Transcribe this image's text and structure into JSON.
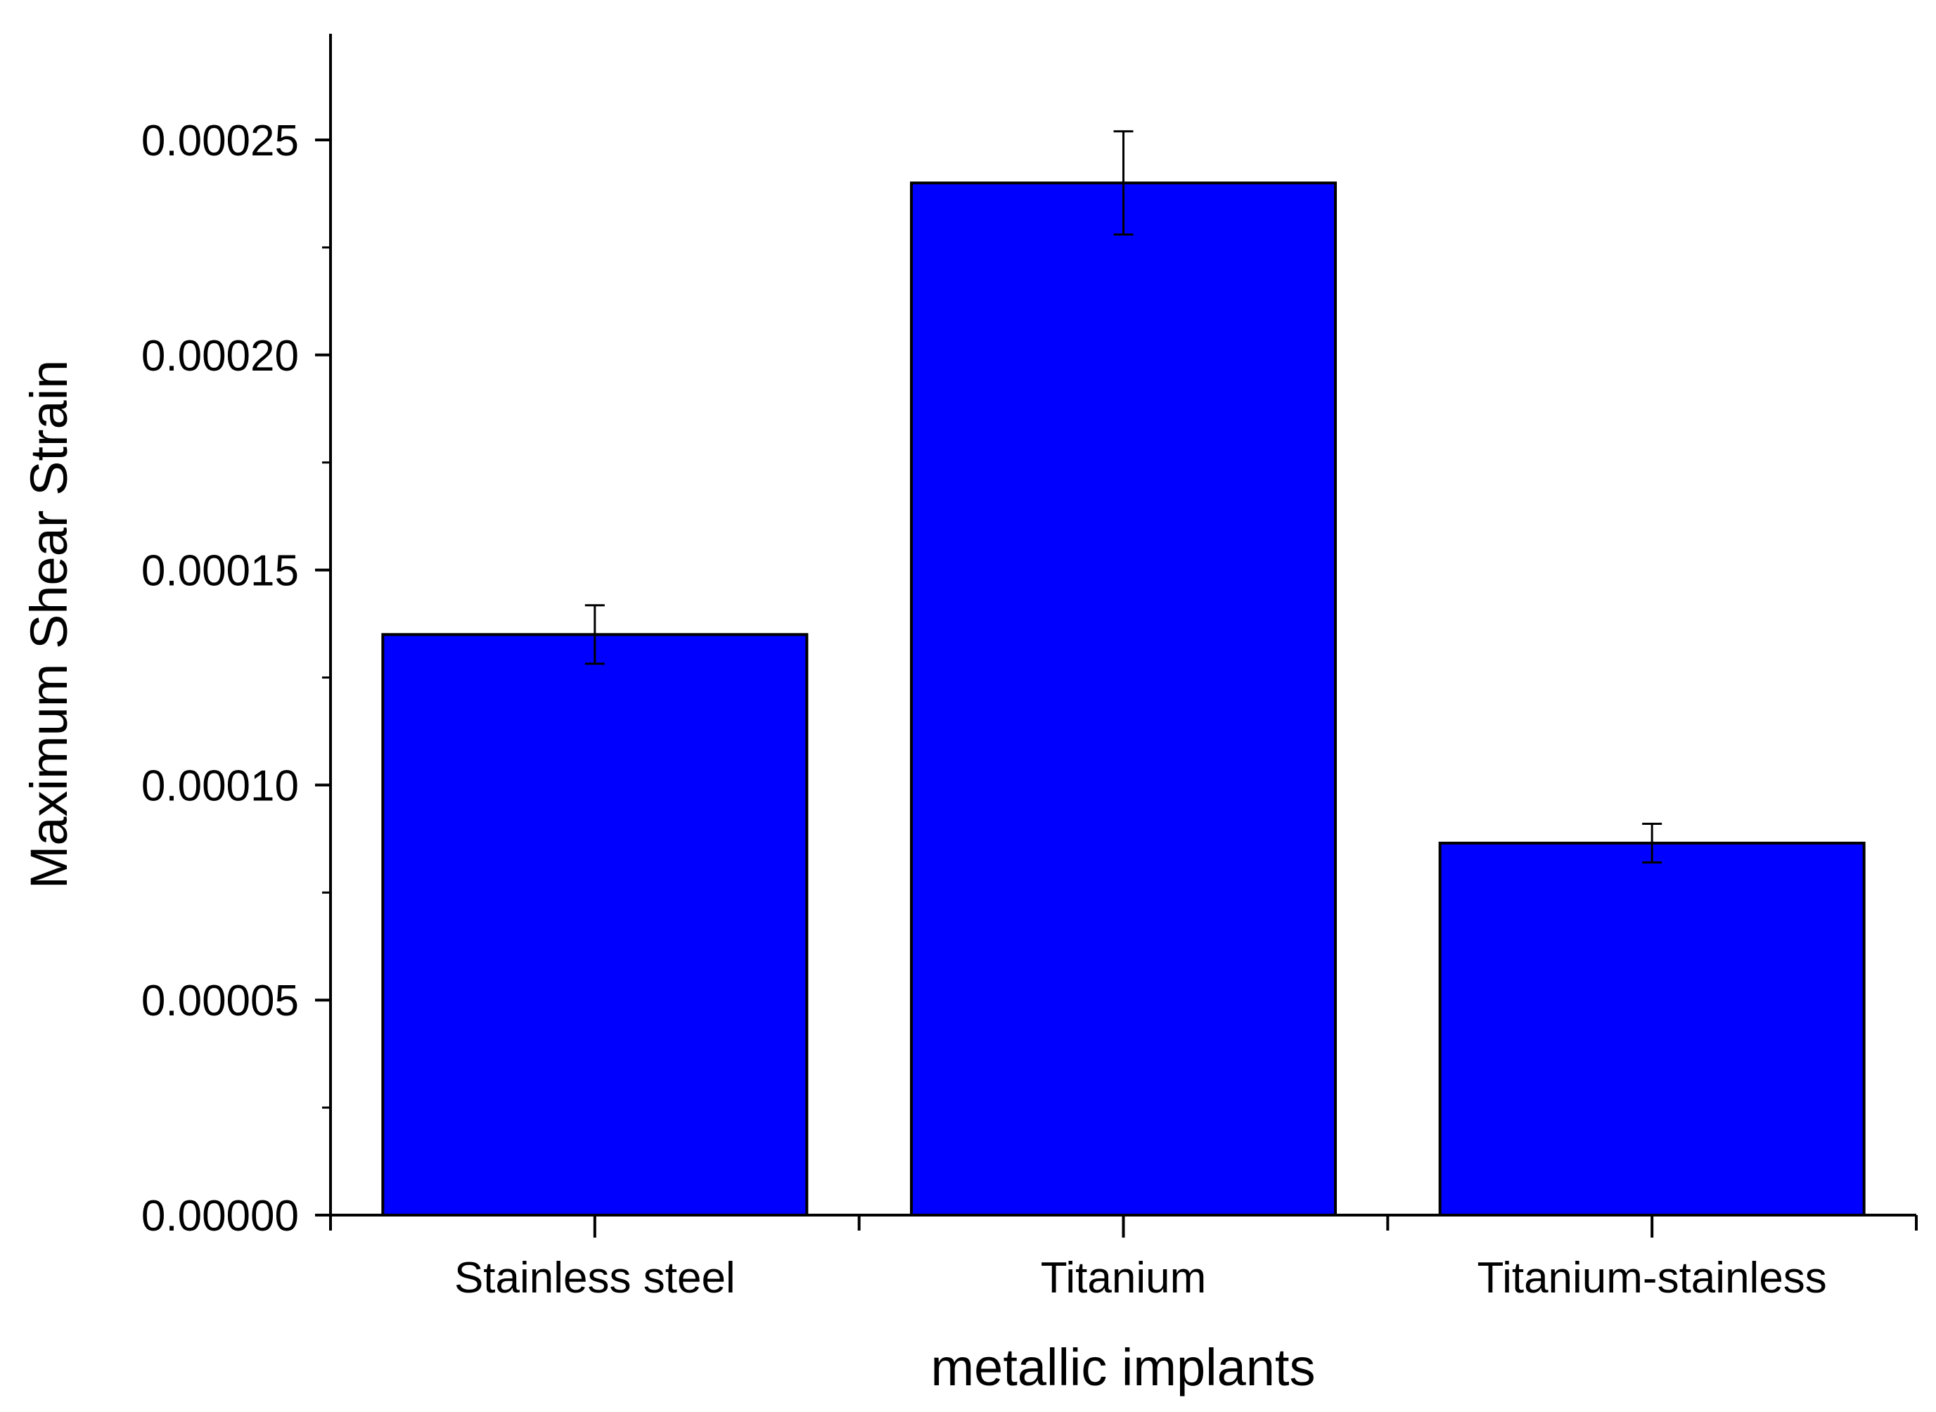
{
  "chart_data": {
    "type": "bar",
    "title": "",
    "xlabel": "metallic implants",
    "ylabel": "Maximum Shear Strain",
    "categories": [
      "Stainless steel",
      "Titanium",
      "Titanium-stainless"
    ],
    "values": [
      0.000135,
      0.00024,
      8.65e-05
    ],
    "errors": [
      6.8e-06,
      1.2e-05,
      4.5e-06
    ],
    "ylim": [
      0,
      0.000275
    ],
    "yticks": [
      0,
      5e-05,
      0.0001,
      0.00015,
      0.0002,
      0.00025
    ],
    "ytick_labels": [
      "0.00000",
      "0.00005",
      "0.00010",
      "0.00015",
      "0.00020",
      "0.00025"
    ],
    "minor_yticks": [
      2.5e-05,
      7.5e-05,
      0.000125,
      0.000175,
      0.000225
    ],
    "grid": false,
    "legend": "none",
    "colors": {
      "bar_fill": "#0000ff",
      "bar_stroke": "#000000",
      "axis": "#000000",
      "error_bar": "#000000"
    }
  }
}
